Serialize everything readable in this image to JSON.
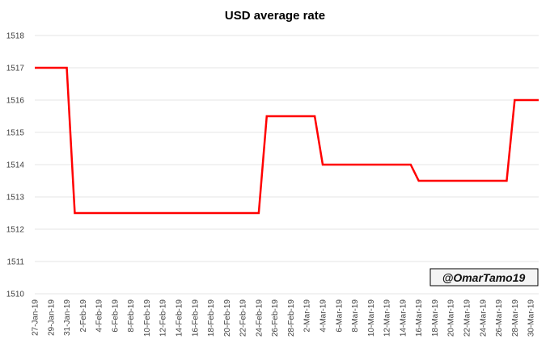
{
  "chart_data": {
    "type": "line",
    "title": "USD average rate",
    "xlabel": "",
    "ylabel": "",
    "ylim": [
      1510,
      1518
    ],
    "yticks": [
      1510,
      1511,
      1512,
      1513,
      1514,
      1515,
      1516,
      1517,
      1518
    ],
    "grid": true,
    "legend": "none",
    "x_tick_labels": [
      "27-Jan-19",
      "29-Jan-19",
      "31-Jan-19",
      "2-Feb-19",
      "4-Feb-19",
      "6-Feb-19",
      "8-Feb-19",
      "10-Feb-19",
      "12-Feb-19",
      "14-Feb-19",
      "16-Feb-19",
      "18-Feb-19",
      "20-Feb-19",
      "22-Feb-19",
      "24-Feb-19",
      "26-Feb-19",
      "28-Feb-19",
      "2-Mar-19",
      "4-Mar-19",
      "6-Mar-19",
      "8-Mar-19",
      "10-Mar-19",
      "12-Mar-19",
      "14-Mar-19",
      "16-Mar-19",
      "18-Mar-19",
      "20-Mar-19",
      "22-Mar-19",
      "24-Mar-19",
      "26-Mar-19",
      "28-Mar-19",
      "30-Mar-19"
    ],
    "x": [
      "27-Jan-19",
      "28-Jan-19",
      "29-Jan-19",
      "30-Jan-19",
      "31-Jan-19",
      "1-Feb-19",
      "2-Feb-19",
      "3-Feb-19",
      "4-Feb-19",
      "5-Feb-19",
      "6-Feb-19",
      "7-Feb-19",
      "8-Feb-19",
      "9-Feb-19",
      "10-Feb-19",
      "11-Feb-19",
      "12-Feb-19",
      "13-Feb-19",
      "14-Feb-19",
      "15-Feb-19",
      "16-Feb-19",
      "17-Feb-19",
      "18-Feb-19",
      "19-Feb-19",
      "20-Feb-19",
      "21-Feb-19",
      "22-Feb-19",
      "23-Feb-19",
      "24-Feb-19",
      "25-Feb-19",
      "26-Feb-19",
      "27-Feb-19",
      "28-Feb-19",
      "1-Mar-19",
      "2-Mar-19",
      "3-Mar-19",
      "4-Mar-19",
      "5-Mar-19",
      "6-Mar-19",
      "7-Mar-19",
      "8-Mar-19",
      "9-Mar-19",
      "10-Mar-19",
      "11-Mar-19",
      "12-Mar-19",
      "13-Mar-19",
      "14-Mar-19",
      "15-Mar-19",
      "16-Mar-19",
      "17-Mar-19",
      "18-Mar-19",
      "19-Mar-19",
      "20-Mar-19",
      "21-Mar-19",
      "22-Mar-19",
      "23-Mar-19",
      "24-Mar-19",
      "25-Mar-19",
      "26-Mar-19",
      "27-Mar-19",
      "28-Mar-19",
      "29-Mar-19",
      "30-Mar-19",
      "31-Mar-19"
    ],
    "series": [
      {
        "color": "#ff0000",
        "values": [
          1517,
          1517,
          1517,
          1517,
          1517,
          1512.5,
          1512.5,
          1512.5,
          1512.5,
          1512.5,
          1512.5,
          1512.5,
          1512.5,
          1512.5,
          1512.5,
          1512.5,
          1512.5,
          1512.5,
          1512.5,
          1512.5,
          1512.5,
          1512.5,
          1512.5,
          1512.5,
          1512.5,
          1512.5,
          1512.5,
          1512.5,
          1512.5,
          1515.5,
          1515.5,
          1515.5,
          1515.5,
          1515.5,
          1515.5,
          1515.5,
          1514,
          1514,
          1514,
          1514,
          1514,
          1514,
          1514,
          1514,
          1514,
          1514,
          1514,
          1514,
          1513.5,
          1513.5,
          1513.5,
          1513.5,
          1513.5,
          1513.5,
          1513.5,
          1513.5,
          1513.5,
          1513.5,
          1513.5,
          1513.5,
          1516,
          1516,
          1516,
          1516
        ]
      }
    ]
  },
  "watermark": {
    "text": "@OmarTamo19"
  }
}
